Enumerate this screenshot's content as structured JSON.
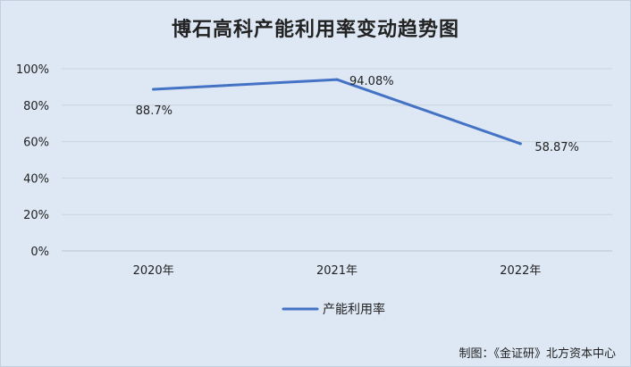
{
  "title": "博石高科产能利用率变动趋势图",
  "source_note": "制图：《金证研》北方资本中心",
  "chart_data": {
    "type": "line",
    "title": "博石高科产能利用率变动趋势图",
    "categories": [
      "2020年",
      "2021年",
      "2022年"
    ],
    "series": [
      {
        "name": "产能利用率",
        "values": [
          88.7,
          94.08,
          58.87
        ],
        "labels": [
          "88.7%",
          "94.08%",
          "58.87%"
        ],
        "color": "#4472c4"
      }
    ],
    "yticks": [
      "0%",
      "20%",
      "40%",
      "60%",
      "80%",
      "100%"
    ],
    "ylim": [
      0,
      100
    ],
    "grid": true,
    "legend": "bottom"
  }
}
